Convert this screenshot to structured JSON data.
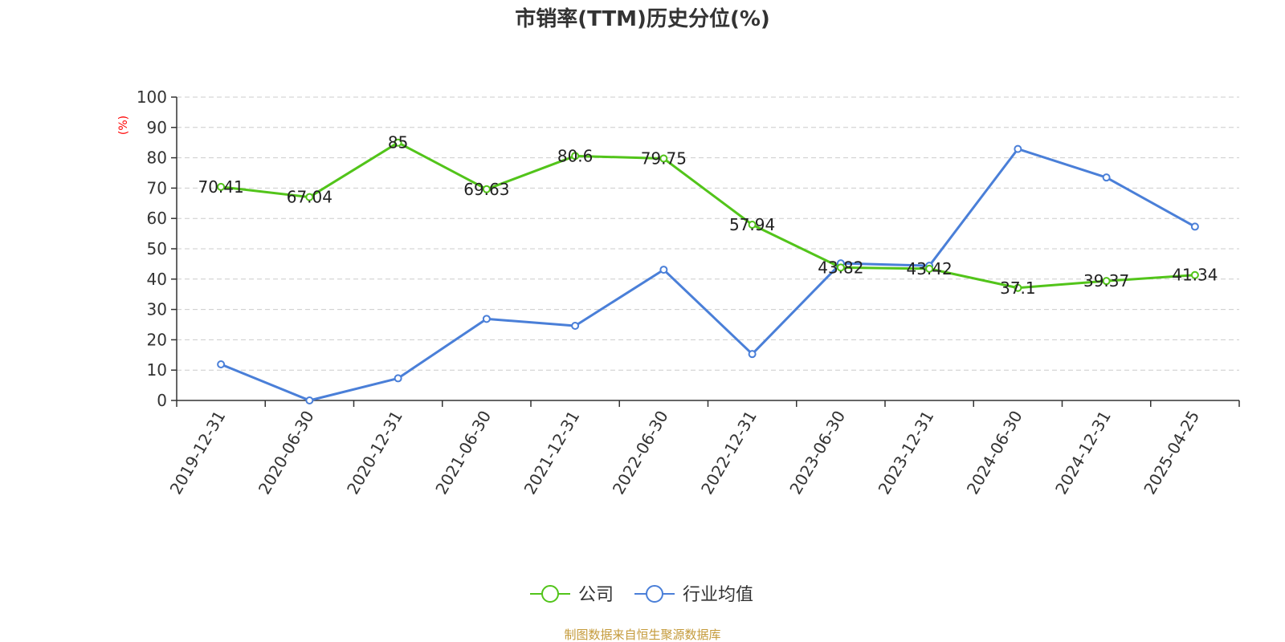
{
  "chart_data": {
    "type": "line",
    "title": "市销率(TTM)历史分位(%)",
    "ylabel": "(%)",
    "xlabel": "",
    "ylim": [
      0,
      100
    ],
    "yticks": [
      0,
      10,
      20,
      30,
      40,
      50,
      60,
      70,
      80,
      90,
      100
    ],
    "grid": "horizontal-dashed",
    "legend_position": "bottom-center",
    "categories": [
      "2019-12-31",
      "2020-06-30",
      "2020-12-31",
      "2021-06-30",
      "2021-12-31",
      "2022-06-30",
      "2022-12-31",
      "2023-06-30",
      "2023-12-31",
      "2024-06-30",
      "2024-12-31",
      "2025-04-25"
    ],
    "series": [
      {
        "name": "公司",
        "color": "#52c41a",
        "values": [
          70.41,
          67.04,
          85,
          69.63,
          80.6,
          79.75,
          57.94,
          43.82,
          43.42,
          37.1,
          39.37,
          41.34
        ],
        "labels": [
          "70.41",
          "67.04",
          "85",
          "69.63",
          "80.6",
          "79.75",
          "57.94",
          "43.82",
          "43.42",
          "37.1",
          "39.37",
          "41.34"
        ]
      },
      {
        "name": "行业均值",
        "color": "#4a7fd8",
        "values": [
          11.9,
          0,
          7.3,
          26.9,
          24.6,
          43.1,
          15.3,
          45.2,
          44.4,
          82.9,
          73.5,
          57.3
        ]
      }
    ],
    "source": "制图数据来自恒生聚源数据库"
  }
}
